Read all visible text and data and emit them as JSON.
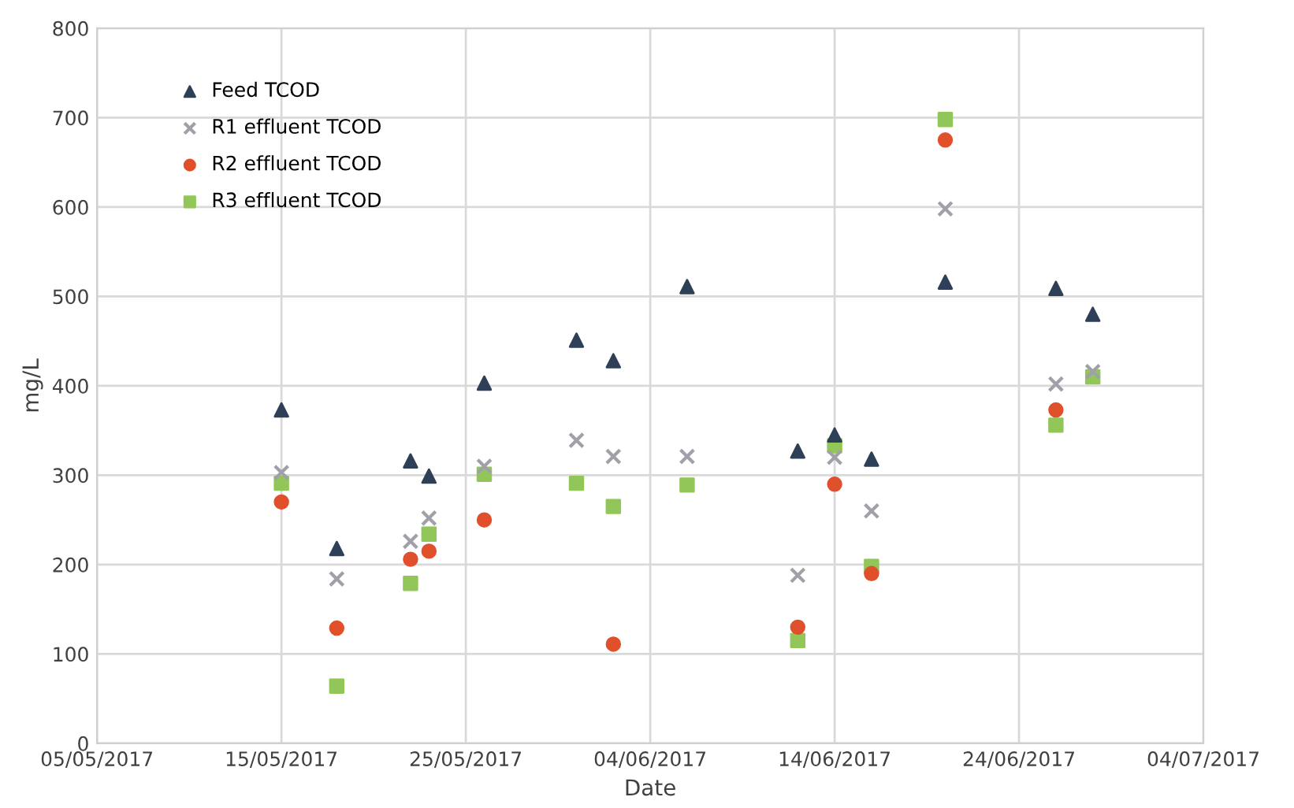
{
  "chart_data": {
    "type": "scatter",
    "xlabel": "Date",
    "ylabel": "mg/L",
    "x": [
      "2017-05-15",
      "2017-05-18",
      "2017-05-22",
      "2017-05-23",
      "2017-05-26",
      "2017-05-31",
      "2017-06-02",
      "2017-06-06",
      "2017-06-12",
      "2017-06-14",
      "2017-06-16",
      "2017-06-20",
      "2017-06-26",
      "2017-06-28"
    ],
    "series": [
      {
        "name": "Feed TCOD",
        "color": "#2e4057",
        "marker": "triangle",
        "values": [
          373,
          218,
          316,
          299,
          403,
          451,
          428,
          511,
          327,
          345,
          318,
          516,
          509,
          480
        ]
      },
      {
        "name": "R1 effluent TCOD",
        "color": "#a0a0a8",
        "marker": "cross",
        "values": [
          303,
          184,
          226,
          252,
          310,
          339,
          321,
          321,
          188,
          320,
          260,
          598,
          402,
          416
        ]
      },
      {
        "name": "R2 effluent TCOD",
        "color": "#e0502a",
        "marker": "circle",
        "values": [
          270,
          129,
          206,
          215,
          250,
          null,
          111,
          null,
          130,
          290,
          190,
          675,
          373,
          null
        ]
      },
      {
        "name": "R3 effluent TCOD",
        "color": "#92c658",
        "marker": "square",
        "values": [
          291,
          64,
          179,
          234,
          301,
          291,
          265,
          289,
          115,
          333,
          198,
          698,
          356,
          410
        ]
      }
    ],
    "xlim": [
      "2017-05-05",
      "2017-07-04"
    ],
    "xticks": [
      {
        "value": "2017-05-05",
        "label": "05/05/2017"
      },
      {
        "value": "2017-05-15",
        "label": "15/05/2017"
      },
      {
        "value": "2017-05-25",
        "label": "25/05/2017"
      },
      {
        "value": "2017-06-04",
        "label": "04/06/2017"
      },
      {
        "value": "2017-06-14",
        "label": "14/06/2017"
      },
      {
        "value": "2017-06-24",
        "label": "24/06/2017"
      },
      {
        "value": "2017-07-04",
        "label": "04/07/2017"
      }
    ],
    "ylim": [
      0,
      800
    ],
    "yticks": [
      0,
      100,
      200,
      300,
      400,
      500,
      600,
      700,
      800
    ],
    "grid": true,
    "legend": "top left"
  }
}
